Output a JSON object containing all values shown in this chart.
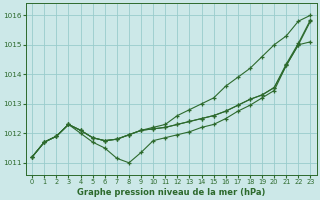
{
  "x": [
    0,
    1,
    2,
    3,
    4,
    5,
    6,
    7,
    8,
    9,
    10,
    11,
    12,
    13,
    14,
    15,
    16,
    17,
    18,
    19,
    20,
    21,
    22,
    23
  ],
  "line1": [
    1011.2,
    1011.7,
    1011.9,
    1012.3,
    1012.0,
    1011.7,
    1011.5,
    1011.15,
    1011.0,
    1011.35,
    1011.75,
    1011.85,
    1011.95,
    1012.05,
    1012.2,
    1012.3,
    1012.5,
    1012.75,
    1012.95,
    1013.2,
    1013.45,
    1014.3,
    1015.0,
    1015.1
  ],
  "line2": [
    1011.2,
    1011.7,
    1011.9,
    1012.3,
    1012.1,
    1011.85,
    1011.75,
    1011.8,
    1011.95,
    1012.1,
    1012.15,
    1012.2,
    1012.3,
    1012.4,
    1012.5,
    1012.6,
    1012.75,
    1012.95,
    1013.15,
    1013.3,
    1013.55,
    1014.3,
    1015.0,
    1015.8
  ],
  "line3": [
    1011.2,
    1011.7,
    1011.9,
    1012.3,
    1012.1,
    1011.85,
    1011.75,
    1011.8,
    1011.95,
    1012.1,
    1012.15,
    1012.2,
    1012.3,
    1012.4,
    1012.5,
    1012.6,
    1012.75,
    1012.95,
    1013.15,
    1013.3,
    1013.55,
    1014.35,
    1015.05,
    1015.85
  ],
  "line_top": [
    1011.2,
    1011.7,
    1011.9,
    1012.3,
    1012.1,
    1011.85,
    1011.75,
    1011.8,
    1011.95,
    1012.1,
    1012.2,
    1012.3,
    1012.6,
    1012.8,
    1013.0,
    1013.2,
    1013.6,
    1013.9,
    1014.2,
    1014.6,
    1015.0,
    1015.3,
    1015.8,
    1016.0
  ],
  "line_color": "#2d6a2d",
  "bg_color": "#cce8e8",
  "grid_color": "#99cccc",
  "xlabel": "Graphe pression niveau de la mer (hPa)",
  "ylim": [
    1010.6,
    1016.4
  ],
  "xlim": [
    -0.5,
    23.5
  ],
  "yticks": [
    1011,
    1012,
    1013,
    1014,
    1015,
    1016
  ],
  "xticks": [
    0,
    1,
    2,
    3,
    4,
    5,
    6,
    7,
    8,
    9,
    10,
    11,
    12,
    13,
    14,
    15,
    16,
    17,
    18,
    19,
    20,
    21,
    22,
    23
  ]
}
